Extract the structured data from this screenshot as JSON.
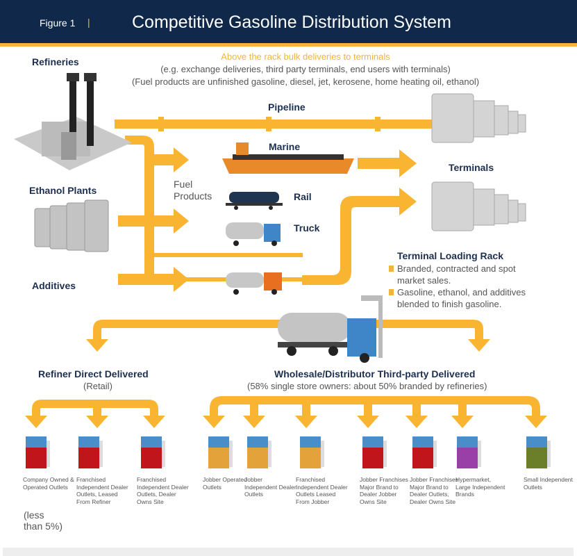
{
  "header": {
    "figure_label": "Figure 1",
    "separator": "|",
    "title": "Competitive Gasoline Distribution System"
  },
  "colors": {
    "header_bg": "#10294a",
    "accent": "#f9b531",
    "heading_text": "#1d2f4f"
  },
  "top_note": {
    "title": "Above the rack bulk deliveries to terminals",
    "line1": "(e.g. exchange deliveries, third party terminals, end users with terminals)",
    "line2": "(Fuel products are unfinished gasoline, diesel, jet, kerosene, home heating oil, ethanol)"
  },
  "sources": {
    "refineries": "Refineries",
    "ethanol": "Ethanol Plants",
    "additives": "Additives"
  },
  "transport": {
    "pipeline": "Pipeline",
    "marine": "Marine",
    "rail": "Rail",
    "truck": "Truck",
    "fuel_products": "Fuel\nProducts"
  },
  "terminals": "Terminals",
  "rack": {
    "title": "Terminal Loading Rack",
    "bullets": [
      "Branded, contracted and spot market sales.",
      "Gasoline, ethanol, and additives blended to finish gasoline."
    ]
  },
  "refiner": {
    "title": "Refiner Direct Delivered",
    "subtitle": "(Retail)",
    "note": "(less than 5%)"
  },
  "wholesale": {
    "title": "Wholesale/Distributor Third-party Delivered",
    "subtitle": "(58% single store owners: about 50% branded by refineries)"
  },
  "outlets": [
    {
      "label": "Company Owned & Operated Outlets",
      "color": "#c0161b"
    },
    {
      "label": "Franchised Independent Dealer Outlets, Leased From Refiner",
      "color": "#c0161b"
    },
    {
      "label": "Franchised Independent Dealer Outlets, Dealer Owns Site",
      "color": "#c0161b"
    },
    {
      "label": "Jobber Operated Outlets",
      "color": "#e3a33a"
    },
    {
      "label": "Jobber Independent Dealer Outlets",
      "color": "#e3a33a"
    },
    {
      "label": "Franchised Independent Dealer Outlets Leased From Jobber",
      "color": "#e3a33a"
    },
    {
      "label": "Jobber Franchises Major Brand to Dealer Jobber Owns Site",
      "color": "#c0161b"
    },
    {
      "label": "Jobber Franchises Major Brand to Dealer Outlets, Dealer Owns Site",
      "color": "#c0161b"
    },
    {
      "label": "Hypermarket, Large Independent Brands",
      "color": "#9b3fa8"
    },
    {
      "label": "Small Independent Outlets",
      "color": "#6b7f2a"
    }
  ]
}
